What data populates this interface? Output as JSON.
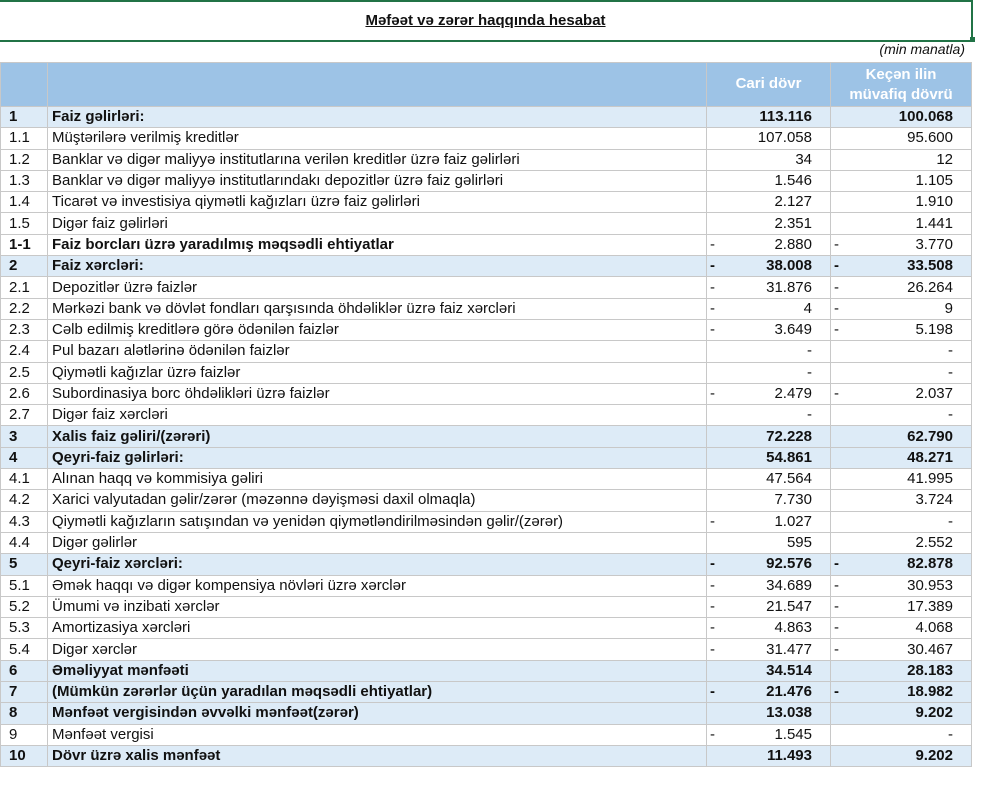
{
  "title": "Məfəət və zərər haqqında hesabat",
  "unit": "(min manatla)",
  "headers": {
    "current": "Cari dövr",
    "previous_line1": "Keçən ilin",
    "previous_line2": "müvafiq dövrü"
  },
  "rows": [
    {
      "no": "1",
      "label": "Faiz gəlirləri:",
      "bold": true,
      "cur_neg": false,
      "cur": "113.116",
      "prev_neg": false,
      "prev": "100.068"
    },
    {
      "no": "1.1",
      "label": "Müştərilərə verilmiş kreditlər",
      "bold": false,
      "cur_neg": false,
      "cur": "107.058",
      "prev_neg": false,
      "prev": "95.600"
    },
    {
      "no": "1.2",
      "label": "Banklar və digər maliyyə institutlarına verilən kreditlər üzrə faiz gəlirləri",
      "bold": false,
      "cur_neg": false,
      "cur": "34",
      "prev_neg": false,
      "prev": "12"
    },
    {
      "no": "1.3",
      "label": "Banklar və digər maliyyə institutlarındakı depozitlər üzrə faiz gəlirləri",
      "bold": false,
      "cur_neg": false,
      "cur": "1.546",
      "prev_neg": false,
      "prev": "1.105"
    },
    {
      "no": "1.4",
      "label": "Ticarət və investisiya qiymətli kağızları üzrə faiz gəlirləri",
      "bold": false,
      "cur_neg": false,
      "cur": "2.127",
      "prev_neg": false,
      "prev": "1.910"
    },
    {
      "no": "1.5",
      "label": "Digər faiz gəlirləri",
      "bold": false,
      "cur_neg": false,
      "cur": "2.351",
      "prev_neg": false,
      "prev": "1.441"
    },
    {
      "no": "1-1",
      "label": "Faiz borcları üzrə yaradılmış məqsədli ehtiyatlar",
      "bold": "plain",
      "cur_neg": true,
      "cur": "2.880",
      "prev_neg": true,
      "prev": "3.770"
    },
    {
      "no": "2",
      "label": "Faiz xərcləri:",
      "bold": true,
      "cur_neg": true,
      "cur": "38.008",
      "prev_neg": true,
      "prev": "33.508"
    },
    {
      "no": "2.1",
      "label": "Depozitlər üzrə faizlər",
      "bold": false,
      "cur_neg": true,
      "cur": "31.876",
      "prev_neg": true,
      "prev": "26.264"
    },
    {
      "no": "2.2",
      "label": "Mərkəzi bank və dövlət fondları qarşısında öhdəliklər üzrə faiz xərcləri",
      "bold": false,
      "cur_neg": true,
      "cur": "4",
      "prev_neg": true,
      "prev": "9"
    },
    {
      "no": "2.3",
      "label": "Cəlb edilmiş kreditlərə görə ödənilən faizlər",
      "bold": false,
      "cur_neg": true,
      "cur": "3.649",
      "prev_neg": true,
      "prev": "5.198"
    },
    {
      "no": "2.4",
      "label": "Pul bazarı alətlərinə ödənilən faizlər",
      "bold": false,
      "cur_neg": false,
      "cur": "-",
      "prev_neg": false,
      "prev": "-"
    },
    {
      "no": "2.5",
      "label": "Qiymətli kağızlar üzrə faizlər",
      "bold": false,
      "cur_neg": false,
      "cur": "-",
      "prev_neg": false,
      "prev": "-"
    },
    {
      "no": "2.6",
      "label": "Subordinasiya borc öhdəlikləri üzrə faizlər",
      "bold": false,
      "cur_neg": true,
      "cur": "2.479",
      "prev_neg": true,
      "prev": "2.037"
    },
    {
      "no": "2.7",
      "label": "Digər faiz xərcləri",
      "bold": false,
      "cur_neg": false,
      "cur": "-",
      "prev_neg": false,
      "prev": "-"
    },
    {
      "no": "3",
      "label": "Xalis faiz gəliri/(zərəri)",
      "bold": true,
      "cur_neg": false,
      "cur": "72.228",
      "prev_neg": false,
      "prev": "62.790"
    },
    {
      "no": "4",
      "label": "Qeyri-faiz gəlirləri:",
      "bold": true,
      "cur_neg": false,
      "cur": "54.861",
      "prev_neg": false,
      "prev": "48.271"
    },
    {
      "no": "4.1",
      "label": "Alınan haqq və kommisiya gəliri",
      "bold": false,
      "cur_neg": false,
      "cur": "47.564",
      "prev_neg": false,
      "prev": "41.995"
    },
    {
      "no": "4.2",
      "label": "Xarici valyutadan gəlir/zərər (məzənnə dəyişməsi daxil olmaqla)",
      "bold": false,
      "cur_neg": false,
      "cur": "7.730",
      "prev_neg": false,
      "prev": "3.724"
    },
    {
      "no": "4.3",
      "label": "Qiymətli kağızların satışından və yenidən qiymətləndirilməsindən gəlir/(zərər)",
      "bold": false,
      "cur_neg": true,
      "cur": "1.027",
      "prev_neg": false,
      "prev": "-"
    },
    {
      "no": "4.4",
      "label": "Digər gəlirlər",
      "bold": false,
      "cur_neg": false,
      "cur": "595",
      "prev_neg": false,
      "prev": "2.552"
    },
    {
      "no": "5",
      "label": "Qeyri-faiz xərcləri:",
      "bold": true,
      "cur_neg": true,
      "cur": "92.576",
      "prev_neg": true,
      "prev": "82.878"
    },
    {
      "no": "5.1",
      "label": "Əmək haqqı və digər kompensiya növləri üzrə xərclər",
      "bold": false,
      "cur_neg": true,
      "cur": "34.689",
      "prev_neg": true,
      "prev": "30.953"
    },
    {
      "no": "5.2",
      "label": "Ümumi və inzibati xərclər",
      "bold": false,
      "cur_neg": true,
      "cur": "21.547",
      "prev_neg": true,
      "prev": "17.389"
    },
    {
      "no": "5.3",
      "label": "Amortizasiya xərcləri",
      "bold": false,
      "cur_neg": true,
      "cur": "4.863",
      "prev_neg": true,
      "prev": "4.068"
    },
    {
      "no": "5.4",
      "label": "Digər xərclər",
      "bold": false,
      "cur_neg": true,
      "cur": "31.477",
      "prev_neg": true,
      "prev": "30.467"
    },
    {
      "no": "6",
      "label": "Əməliyyat mənfəəti",
      "bold": true,
      "cur_neg": false,
      "cur": "34.514",
      "prev_neg": false,
      "prev": "28.183"
    },
    {
      "no": "7",
      "label": "(Mümkün zərərlər üçün yaradılan məqsədli ehtiyatlar)",
      "bold": true,
      "cur_neg": true,
      "cur": "21.476",
      "prev_neg": true,
      "prev": "18.982"
    },
    {
      "no": "8",
      "label": "Mənfəət vergisindən əvvəlki mənfəət(zərər)",
      "bold": true,
      "cur_neg": false,
      "cur": "13.038",
      "prev_neg": false,
      "prev": "9.202"
    },
    {
      "no": "9",
      "label": "Mənfəət vergisi",
      "bold": false,
      "cur_neg": true,
      "cur": "1.545",
      "prev_neg": false,
      "prev": "-"
    },
    {
      "no": "10",
      "label": "Dövr üzrə xalis mənfəət",
      "bold": true,
      "cur_neg": false,
      "cur": "11.493",
      "prev_neg": false,
      "prev": "9.202"
    }
  ]
}
